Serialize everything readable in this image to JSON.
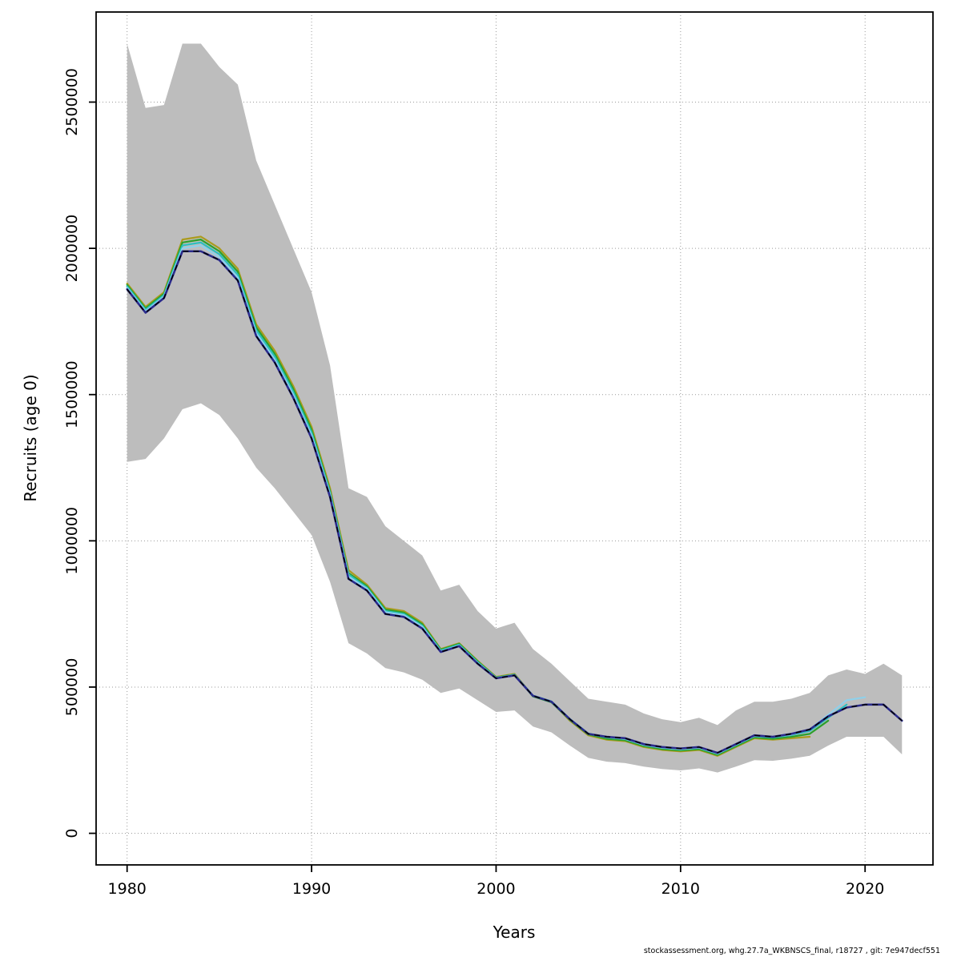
{
  "figure": {
    "footer": "stockassessment.org, whg.27.7a_WKBNSCS_final, r18727 , git: 7e947decf551"
  },
  "chart_data": {
    "type": "line",
    "title": "",
    "xlabel": "Years",
    "ylabel": "Recruits (age 0)",
    "xlim": [
      1980,
      2022
    ],
    "ylim": [
      0,
      2700000
    ],
    "axis_pad_frac": 0.04,
    "x_ticks": [
      1980,
      1990,
      2000,
      2010,
      2020
    ],
    "y_ticks": [
      0,
      500000,
      1000000,
      1500000,
      2000000,
      2500000
    ],
    "grid": true,
    "legend_position": "none",
    "colors": {
      "grid": "#9a9a9a",
      "band": "#bdbdbd",
      "box": "#000000"
    },
    "band": {
      "name": "confidence-band",
      "x_start": 1980,
      "hi": [
        2700000,
        2480000,
        2490000,
        2700000,
        2700000,
        2620000,
        2560000,
        2300000,
        2150000,
        2000000,
        1850000,
        1600000,
        1180000,
        1150000,
        1050000,
        1000000,
        950000,
        830000,
        850000,
        760000,
        700000,
        720000,
        630000,
        580000,
        520000,
        460000,
        450000,
        440000,
        410000,
        390000,
        380000,
        395000,
        370000,
        420000,
        450000,
        450000,
        460000,
        480000,
        540000,
        560000,
        545000,
        580000,
        540000
      ],
      "lo": [
        1270000,
        1280000,
        1350000,
        1450000,
        1470000,
        1430000,
        1350000,
        1250000,
        1180000,
        1100000,
        1020000,
        860000,
        650000,
        615000,
        565000,
        550000,
        525000,
        480000,
        495000,
        455000,
        415000,
        420000,
        365000,
        345000,
        300000,
        258000,
        245000,
        240000,
        228000,
        220000,
        215000,
        222000,
        208000,
        228000,
        250000,
        248000,
        255000,
        265000,
        300000,
        330000,
        330000,
        330000,
        270000
      ]
    },
    "series": [
      {
        "name": "retro-run-2017",
        "color": "#ab9b1e",
        "x_start": 1980,
        "values": [
          1880000,
          1800000,
          1850000,
          2030000,
          2040000,
          2000000,
          1930000,
          1740000,
          1650000,
          1530000,
          1390000,
          1180000,
          900000,
          850000,
          770000,
          760000,
          720000,
          630000,
          650000,
          590000,
          535000,
          545000,
          470000,
          450000,
          385000,
          335000,
          320000,
          315000,
          295000,
          285000,
          280000,
          285000,
          265000,
          295000,
          325000,
          320000,
          325000,
          330000
        ]
      },
      {
        "name": "retro-run-2018",
        "color": "#2ca02c",
        "x_start": 1980,
        "values": [
          1875000,
          1795000,
          1845000,
          2020000,
          2030000,
          1990000,
          1920000,
          1730000,
          1640000,
          1520000,
          1380000,
          1170000,
          890000,
          845000,
          765000,
          755000,
          715000,
          628000,
          648000,
          588000,
          533000,
          543000,
          468000,
          448000,
          388000,
          338000,
          323000,
          318000,
          298000,
          288000,
          283000,
          288000,
          268000,
          298000,
          328000,
          323000,
          330000,
          340000,
          385000
        ]
      },
      {
        "name": "retro-run-2019",
        "color": "#2abfbf",
        "x_start": 1980,
        "values": [
          1870000,
          1790000,
          1840000,
          2010000,
          2020000,
          1980000,
          1910000,
          1720000,
          1630000,
          1510000,
          1370000,
          1165000,
          885000,
          840000,
          760000,
          750000,
          710000,
          625000,
          645000,
          585000,
          532000,
          542000,
          471000,
          451000,
          391000,
          341000,
          328000,
          322000,
          302000,
          292000,
          287000,
          292000,
          272000,
          302000,
          332000,
          328000,
          336000,
          350000,
          395000,
          440000
        ]
      },
      {
        "name": "retro-run-2020",
        "color": "#8fd0ea",
        "x_start": 1980,
        "values": [
          1865000,
          1785000,
          1835000,
          2000000,
          2010000,
          1970000,
          1900000,
          1710000,
          1620000,
          1500000,
          1360000,
          1158000,
          878000,
          836000,
          756000,
          746000,
          706000,
          622000,
          642000,
          582000,
          531000,
          541000,
          470000,
          450000,
          390000,
          340000,
          329000,
          323000,
          303000,
          293000,
          288000,
          293000,
          273000,
          303000,
          333000,
          330000,
          338000,
          355000,
          405000,
          455000,
          465000
        ]
      },
      {
        "name": "final-run-2022",
        "color": "#2a2a8c",
        "x_start": 1980,
        "width": 2.6,
        "overlay_dash": "#000000",
        "values": [
          1860000,
          1780000,
          1830000,
          1990000,
          1990000,
          1960000,
          1890000,
          1700000,
          1610000,
          1490000,
          1350000,
          1150000,
          870000,
          830000,
          750000,
          740000,
          700000,
          620000,
          640000,
          580000,
          530000,
          540000,
          470000,
          450000,
          390000,
          340000,
          330000,
          325000,
          305000,
          295000,
          290000,
          295000,
          275000,
          305000,
          335000,
          330000,
          340000,
          355000,
          400000,
          430000,
          440000,
          440000,
          385000
        ]
      }
    ]
  }
}
